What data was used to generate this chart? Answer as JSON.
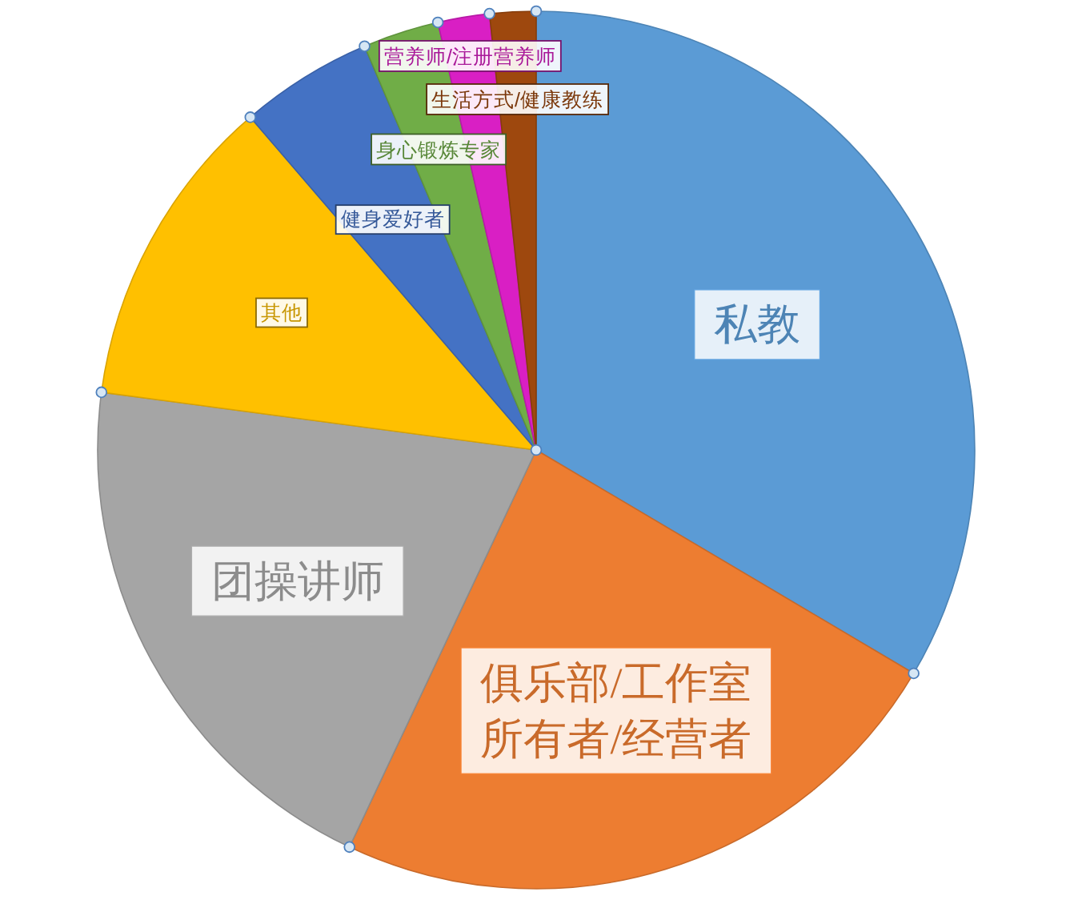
{
  "chart_data": {
    "type": "pie",
    "categories": [
      "私教",
      "俱乐部/工作室所有者/经营者",
      "团操讲师",
      "其他",
      "健身爱好者",
      "身心锻炼专家",
      "营养师/注册营养师",
      "生活方式/健康教练"
    ],
    "values": [
      33.5,
      23.5,
      20.1,
      11.6,
      4.9,
      2.8,
      1.9,
      1.7
    ],
    "colors": [
      "#5b9bd5",
      "#ed7d31",
      "#a5a5a5",
      "#ffc000",
      "#4472c4",
      "#70ad47",
      "#d91fc4",
      "#9e480e"
    ]
  }
}
